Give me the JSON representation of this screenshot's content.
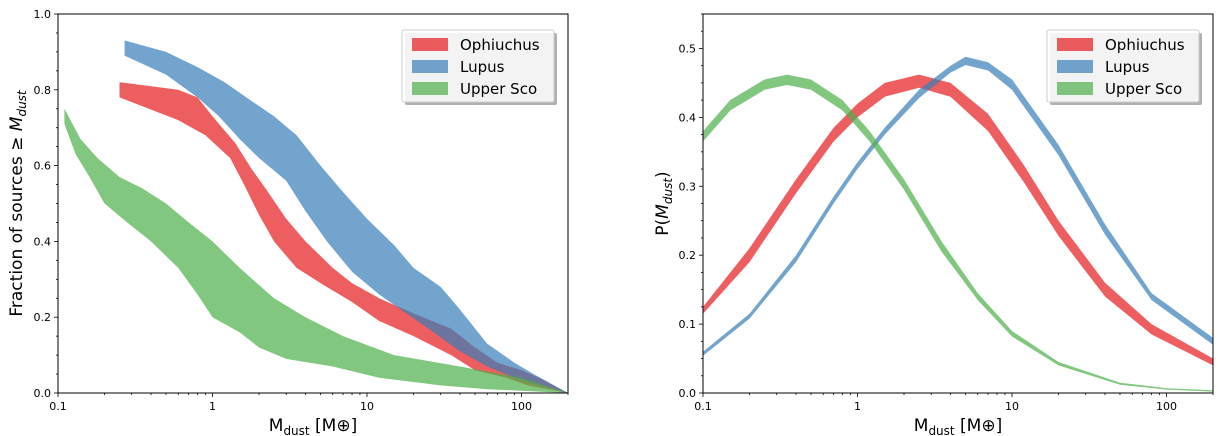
{
  "chart_data": [
    {
      "type": "area",
      "xscale": "log",
      "xlim": [
        0.1,
        200
      ],
      "ylim": [
        0.0,
        1.0
      ],
      "xlabel": "M",
      "xlabel_sub": "dust",
      "xlabel_unit": "[M⊕]",
      "ylabel": "Fraction of sources ≥",
      "ylabel_var": "M",
      "ylabel_sub": "dust",
      "x_ticks": [
        0.1,
        1,
        10,
        100
      ],
      "x_tick_labels": [
        "0.1",
        "1",
        "10",
        "100"
      ],
      "y_ticks": [
        0.0,
        0.2,
        0.4,
        0.6,
        0.8,
        1.0
      ],
      "y_tick_labels": [
        "0.0",
        "0.2",
        "0.4",
        "0.6",
        "0.8",
        "1.0"
      ],
      "legend_position": "top-right",
      "grid": false,
      "series": [
        {
          "name": "Ophiuchus",
          "color": "#e41a1c",
          "upper": [
            [
              0.25,
              0.82
            ],
            [
              0.6,
              0.8
            ],
            [
              0.8,
              0.78
            ],
            [
              1.0,
              0.73
            ],
            [
              1.4,
              0.66
            ],
            [
              1.8,
              0.59
            ],
            [
              2.2,
              0.54
            ],
            [
              3.0,
              0.46
            ],
            [
              4.0,
              0.4
            ],
            [
              6.0,
              0.33
            ],
            [
              8.0,
              0.29
            ],
            [
              12.0,
              0.25
            ],
            [
              20.0,
              0.21
            ],
            [
              35.0,
              0.17
            ],
            [
              50.0,
              0.12
            ],
            [
              70.0,
              0.08
            ],
            [
              100.0,
              0.06
            ],
            [
              130.0,
              0.04
            ],
            [
              200.0,
              0.0
            ]
          ],
          "lower": [
            [
              0.25,
              0.78
            ],
            [
              0.6,
              0.72
            ],
            [
              0.9,
              0.68
            ],
            [
              1.3,
              0.62
            ],
            [
              1.6,
              0.55
            ],
            [
              2.0,
              0.47
            ],
            [
              2.5,
              0.4
            ],
            [
              3.5,
              0.33
            ],
            [
              5.0,
              0.29
            ],
            [
              8.0,
              0.24
            ],
            [
              12.0,
              0.19
            ],
            [
              20.0,
              0.15
            ],
            [
              35.0,
              0.1
            ],
            [
              50.0,
              0.06
            ],
            [
              80.0,
              0.04
            ],
            [
              110.0,
              0.02
            ],
            [
              200.0,
              0.0
            ]
          ]
        },
        {
          "name": "Lupus",
          "color": "#377eb8",
          "upper": [
            [
              0.27,
              0.93
            ],
            [
              0.5,
              0.9
            ],
            [
              0.8,
              0.86
            ],
            [
              1.2,
              0.82
            ],
            [
              1.8,
              0.77
            ],
            [
              2.5,
              0.73
            ],
            [
              3.5,
              0.68
            ],
            [
              5.0,
              0.6
            ],
            [
              7.0,
              0.53
            ],
            [
              10.0,
              0.46
            ],
            [
              15.0,
              0.39
            ],
            [
              20.0,
              0.33
            ],
            [
              30.0,
              0.28
            ],
            [
              40.0,
              0.22
            ],
            [
              60.0,
              0.13
            ],
            [
              90.0,
              0.08
            ],
            [
              120.0,
              0.05
            ],
            [
              200.0,
              0.0
            ]
          ],
          "lower": [
            [
              0.27,
              0.89
            ],
            [
              0.5,
              0.84
            ],
            [
              0.8,
              0.78
            ],
            [
              1.1,
              0.73
            ],
            [
              1.5,
              0.67
            ],
            [
              2.0,
              0.62
            ],
            [
              3.0,
              0.56
            ],
            [
              4.0,
              0.48
            ],
            [
              5.5,
              0.4
            ],
            [
              8.0,
              0.32
            ],
            [
              12.0,
              0.26
            ],
            [
              18.0,
              0.21
            ],
            [
              25.0,
              0.17
            ],
            [
              40.0,
              0.11
            ],
            [
              60.0,
              0.07
            ],
            [
              90.0,
              0.04
            ],
            [
              130.0,
              0.02
            ],
            [
              200.0,
              0.0
            ]
          ]
        },
        {
          "name": "Upper Sco",
          "color": "#4daf4a",
          "upper": [
            [
              0.11,
              0.75
            ],
            [
              0.14,
              0.67
            ],
            [
              0.18,
              0.62
            ],
            [
              0.25,
              0.57
            ],
            [
              0.35,
              0.54
            ],
            [
              0.5,
              0.5
            ],
            [
              0.7,
              0.45
            ],
            [
              1.0,
              0.4
            ],
            [
              1.5,
              0.33
            ],
            [
              2.5,
              0.25
            ],
            [
              4.0,
              0.2
            ],
            [
              7.0,
              0.15
            ],
            [
              15.0,
              0.1
            ],
            [
              40.0,
              0.07
            ],
            [
              100.0,
              0.04
            ],
            [
              200.0,
              0.0
            ]
          ],
          "lower": [
            [
              0.11,
              0.71
            ],
            [
              0.13,
              0.63
            ],
            [
              0.16,
              0.57
            ],
            [
              0.2,
              0.5
            ],
            [
              0.28,
              0.45
            ],
            [
              0.4,
              0.4
            ],
            [
              0.6,
              0.33
            ],
            [
              0.8,
              0.26
            ],
            [
              1.0,
              0.2
            ],
            [
              1.5,
              0.16
            ],
            [
              2.0,
              0.12
            ],
            [
              3.0,
              0.09
            ],
            [
              6.0,
              0.07
            ],
            [
              12.0,
              0.04
            ],
            [
              30.0,
              0.02
            ],
            [
              60.0,
              0.01
            ],
            [
              200.0,
              0.0
            ]
          ]
        }
      ]
    },
    {
      "type": "area",
      "xscale": "log",
      "xlim": [
        0.1,
        200
      ],
      "ylim": [
        0.0,
        0.55
      ],
      "xlabel": "M",
      "xlabel_sub": "dust",
      "xlabel_unit": "[M⊕]",
      "ylabel": "P(",
      "ylabel_var": "M",
      "ylabel_sub": "dust",
      "ylabel_close": ")",
      "x_ticks": [
        0.1,
        1,
        10,
        100
      ],
      "x_tick_labels": [
        "0.1",
        "1",
        "10",
        "100"
      ],
      "y_ticks": [
        0.0,
        0.1,
        0.2,
        0.3,
        0.4,
        0.5
      ],
      "y_tick_labels": [
        "0.0",
        "0.1",
        "0.2",
        "0.3",
        "0.4",
        "0.5"
      ],
      "legend_position": "top-right",
      "grid": false,
      "series": [
        {
          "name": "Ophiuchus",
          "color": "#e41a1c",
          "upper": [
            [
              0.1,
              0.125
            ],
            [
              0.2,
              0.21
            ],
            [
              0.4,
              0.31
            ],
            [
              0.7,
              0.385
            ],
            [
              1.0,
              0.42
            ],
            [
              1.5,
              0.45
            ],
            [
              2.5,
              0.462
            ],
            [
              4.0,
              0.45
            ],
            [
              7.0,
              0.405
            ],
            [
              12.0,
              0.33
            ],
            [
              20.0,
              0.25
            ],
            [
              40.0,
              0.16
            ],
            [
              80.0,
              0.1
            ],
            [
              200.0,
              0.05
            ]
          ],
          "lower": [
            [
              0.1,
              0.115
            ],
            [
              0.2,
              0.19
            ],
            [
              0.4,
              0.29
            ],
            [
              0.7,
              0.365
            ],
            [
              1.0,
              0.4
            ],
            [
              1.5,
              0.43
            ],
            [
              2.5,
              0.443
            ],
            [
              4.0,
              0.43
            ],
            [
              7.0,
              0.38
            ],
            [
              12.0,
              0.305
            ],
            [
              20.0,
              0.228
            ],
            [
              40.0,
              0.14
            ],
            [
              80.0,
              0.085
            ],
            [
              200.0,
              0.04
            ]
          ]
        },
        {
          "name": "Lupus",
          "color": "#377eb8",
          "upper": [
            [
              0.1,
              0.06
            ],
            [
              0.2,
              0.115
            ],
            [
              0.4,
              0.2
            ],
            [
              0.7,
              0.285
            ],
            [
              1.0,
              0.335
            ],
            [
              1.5,
              0.385
            ],
            [
              2.5,
              0.44
            ],
            [
              4.0,
              0.475
            ],
            [
              5.0,
              0.488
            ],
            [
              7.0,
              0.48
            ],
            [
              10.0,
              0.455
            ],
            [
              20.0,
              0.36
            ],
            [
              40.0,
              0.245
            ],
            [
              80.0,
              0.145
            ],
            [
              200.0,
              0.08
            ]
          ],
          "lower": [
            [
              0.1,
              0.054
            ],
            [
              0.2,
              0.108
            ],
            [
              0.4,
              0.19
            ],
            [
              0.7,
              0.275
            ],
            [
              1.0,
              0.325
            ],
            [
              1.5,
              0.375
            ],
            [
              2.5,
              0.428
            ],
            [
              4.0,
              0.465
            ],
            [
              5.0,
              0.476
            ],
            [
              7.0,
              0.468
            ],
            [
              10.0,
              0.44
            ],
            [
              20.0,
              0.345
            ],
            [
              40.0,
              0.23
            ],
            [
              80.0,
              0.135
            ],
            [
              200.0,
              0.07
            ]
          ]
        },
        {
          "name": "Upper Sco",
          "color": "#4daf4a",
          "upper": [
            [
              0.1,
              0.38
            ],
            [
              0.15,
              0.425
            ],
            [
              0.25,
              0.455
            ],
            [
              0.35,
              0.462
            ],
            [
              0.5,
              0.455
            ],
            [
              0.8,
              0.425
            ],
            [
              1.2,
              0.38
            ],
            [
              2.0,
              0.31
            ],
            [
              3.5,
              0.22
            ],
            [
              6.0,
              0.145
            ],
            [
              10.0,
              0.09
            ],
            [
              20.0,
              0.045
            ],
            [
              50.0,
              0.015
            ],
            [
              100.0,
              0.007
            ],
            [
              200.0,
              0.004
            ]
          ],
          "lower": [
            [
              0.1,
              0.365
            ],
            [
              0.15,
              0.41
            ],
            [
              0.25,
              0.44
            ],
            [
              0.35,
              0.447
            ],
            [
              0.5,
              0.44
            ],
            [
              0.8,
              0.41
            ],
            [
              1.2,
              0.365
            ],
            [
              2.0,
              0.295
            ],
            [
              3.5,
              0.205
            ],
            [
              6.0,
              0.135
            ],
            [
              10.0,
              0.082
            ],
            [
              20.0,
              0.04
            ],
            [
              50.0,
              0.012
            ],
            [
              100.0,
              0.005
            ],
            [
              200.0,
              0.002
            ]
          ]
        }
      ]
    }
  ]
}
